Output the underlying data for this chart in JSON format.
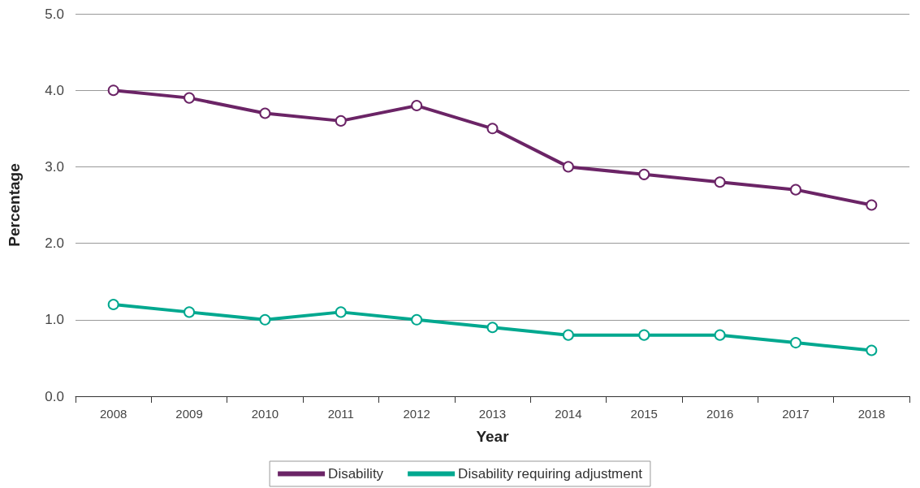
{
  "chart_data": {
    "type": "line",
    "xlabel": "Year",
    "ylabel": "Percentage",
    "categories": [
      "2008",
      "2009",
      "2010",
      "2011",
      "2012",
      "2013",
      "2014",
      "2015",
      "2016",
      "2017",
      "2018"
    ],
    "series": [
      {
        "name": "Disability",
        "color": "#6b2466",
        "values": [
          4.0,
          3.9,
          3.7,
          3.6,
          3.8,
          3.5,
          3.0,
          2.9,
          2.8,
          2.7,
          2.5
        ]
      },
      {
        "name": "Disability requiring adjustment",
        "color": "#00a88f",
        "values": [
          1.2,
          1.1,
          1.0,
          1.1,
          1.0,
          0.9,
          0.8,
          0.8,
          0.8,
          0.7,
          0.6
        ]
      }
    ],
    "ylim": [
      0,
      5
    ],
    "yticks": [
      {
        "value": 0,
        "label": "0.0"
      },
      {
        "value": 1,
        "label": "1.0"
      },
      {
        "value": 2,
        "label": "2.0"
      },
      {
        "value": 3,
        "label": "3.0"
      },
      {
        "value": 4,
        "label": "4.0"
      },
      {
        "value": 5,
        "label": "5.0"
      }
    ],
    "grid": "y",
    "legend": "bottom",
    "marker": "circle",
    "line_style": "solid"
  }
}
